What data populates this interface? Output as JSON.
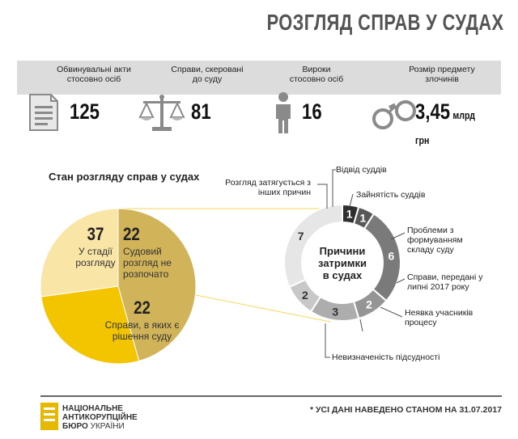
{
  "title": "РОЗГЛЯД СПРАВ У СУДАХ",
  "stats": [
    {
      "label": "Обвинувальні акти стосовно осіб",
      "value": "125",
      "unit": "",
      "icon": "document-icon"
    },
    {
      "label": "Справи, скеровані до суду",
      "value": "81",
      "unit": "",
      "icon": "scales-icon"
    },
    {
      "label": "Вироки стосовно осіб",
      "value": "16",
      "unit": "",
      "icon": "person-icon"
    },
    {
      "label": "Розмір предмету злочинів",
      "value": "3,45",
      "unit": "млрд грн",
      "icon": "handcuffs-icon"
    }
  ],
  "chart_data": [
    {
      "type": "pie",
      "title": "Стан розгляду справ у судах",
      "slices": [
        {
          "name": "У стадії розгляду",
          "value": 37,
          "color": "#d1b45a"
        },
        {
          "name": "Судовий розгляд не розпочато",
          "value": 22,
          "color": "#f2c500"
        },
        {
          "name": "Справи, в яких є рішення суду",
          "value": 22,
          "color": "#f9e5a6"
        }
      ]
    },
    {
      "type": "pie",
      "donut": true,
      "title": "Причини затримки в судах",
      "slices": [
        {
          "name": "Відвід суддів",
          "value": 1,
          "color": "#2f2f2f"
        },
        {
          "name": "Зайнятість суддів",
          "value": 1,
          "color": "#575757"
        },
        {
          "name": "Проблеми з формуванням складу суду",
          "value": 6,
          "color": "#7a7a7a"
        },
        {
          "name": "Справи, передані у липні 2017 року",
          "value": 2,
          "color": "#959595"
        },
        {
          "name": "Неявка учасників процесу",
          "value": 3,
          "color": "#adadad"
        },
        {
          "name": "Невизначеність підсудності",
          "value": 2,
          "color": "#c8c8c8"
        },
        {
          "name": "Розгляд затягується з інших причин",
          "value": 7,
          "color": "#e6e6e6"
        }
      ]
    }
  ],
  "logo": {
    "line1": "НАЦІОНАЛЬНЕ",
    "line2": "АНТИКОРУПЦІЙНЕ",
    "line3": "БЮРО",
    "line3b": "УКРАЇНИ"
  },
  "footnote": "* УСІ ДАНІ НАВЕДЕНО СТАНОМ НА 31.07.2017"
}
